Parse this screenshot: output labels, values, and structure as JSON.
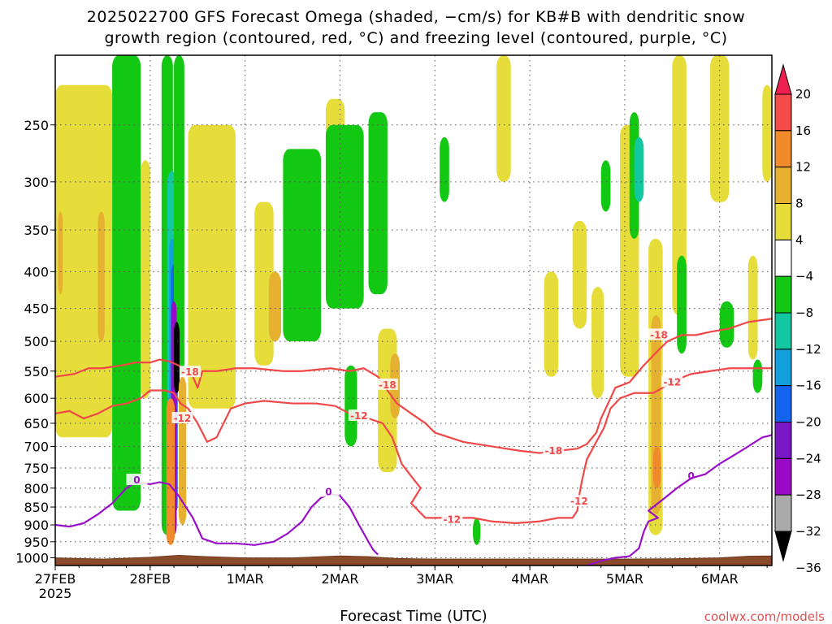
{
  "title": {
    "line1": "2025022700 GFS Forecast Omega (shaded, −cm/s) for KB#B with dendritic snow",
    "line2": "growth region (contoured, red, °C) and freezing level (contoured, purple, °C)"
  },
  "credit": "coolwx.com/models",
  "colors": {
    "background": "#ffffff",
    "dendritic_contour": "#f04848",
    "freezing_contour": "#9a10c8",
    "terrain": "#8b4a2b",
    "grid": "#555555"
  },
  "chart_data": {
    "type": "heatmap",
    "xlabel": "Forecast Time (UTC)",
    "ylabel": "",
    "x_unit": "days from 2025-02-27 00 UTC",
    "xlim": [
      0,
      7.55
    ],
    "ylim": [
      1025,
      200
    ],
    "y_scale": "log-pressure",
    "x_ticks": [
      {
        "value": 0,
        "label": "27FEB",
        "sublabel": "2025"
      },
      {
        "value": 1,
        "label": "28FEB"
      },
      {
        "value": 2,
        "label": "1MAR"
      },
      {
        "value": 3,
        "label": "2MAR"
      },
      {
        "value": 4,
        "label": "3MAR"
      },
      {
        "value": 5,
        "label": "4MAR"
      },
      {
        "value": 6,
        "label": "5MAR"
      },
      {
        "value": 7,
        "label": "6MAR"
      }
    ],
    "y_ticks": [
      250,
      300,
      350,
      400,
      450,
      500,
      550,
      600,
      650,
      700,
      750,
      800,
      850,
      900,
      950,
      1000
    ],
    "grid": true,
    "colorbar": {
      "position": "right",
      "labels": [
        "20",
        "16",
        "12",
        "8",
        "4",
        "−4",
        "−8",
        "−12",
        "−16",
        "−20",
        "−24",
        "−28",
        "−32",
        "−36"
      ],
      "colors": [
        "#ee2050",
        "#f44a4a",
        "#f08a2a",
        "#e6b030",
        "#e6dc3a",
        "#ffffff",
        "#12c812",
        "#12c8a0",
        "#12a0dc",
        "#1464f0",
        "#7a18c8",
        "#9a08c8",
        "#aaaaaa",
        "#000000"
      ]
    },
    "omega_regions": [
      {
        "t0": 0.0,
        "t1": 0.6,
        "p_top": 220,
        "p_bot": 680,
        "color": "#e6dc3a"
      },
      {
        "t0": 0.03,
        "t1": 0.08,
        "p_top": 330,
        "p_bot": 430,
        "color": "#e6b030"
      },
      {
        "t0": 0.45,
        "t1": 0.52,
        "p_top": 330,
        "p_bot": 500,
        "color": "#e6b030"
      },
      {
        "t0": 0.6,
        "t1": 0.9,
        "p_top": 200,
        "p_bot": 860,
        "color": "#12c812"
      },
      {
        "t0": 0.9,
        "t1": 1.0,
        "p_top": 280,
        "p_bot": 600,
        "color": "#e6dc3a"
      },
      {
        "t0": 1.12,
        "t1": 1.24,
        "p_top": 200,
        "p_bot": 930,
        "color": "#12c812"
      },
      {
        "t0": 1.18,
        "t1": 1.28,
        "p_top": 290,
        "p_bot": 800,
        "color": "#12c8a0"
      },
      {
        "t0": 1.2,
        "t1": 1.27,
        "p_top": 360,
        "p_bot": 720,
        "color": "#12a0dc"
      },
      {
        "t0": 1.22,
        "t1": 1.29,
        "p_top": 390,
        "p_bot": 870,
        "color": "#1464f0"
      },
      {
        "t0": 1.25,
        "t1": 1.36,
        "p_top": 200,
        "p_bot": 560,
        "color": "#12c812"
      },
      {
        "t0": 1.22,
        "t1": 1.28,
        "p_top": 440,
        "p_bot": 930,
        "color": "#9a08c8"
      },
      {
        "t0": 1.25,
        "t1": 1.31,
        "p_top": 470,
        "p_bot": 590,
        "color": "#000000"
      },
      {
        "t0": 1.17,
        "t1": 1.26,
        "p_top": 600,
        "p_bot": 960,
        "color": "#f08a2a"
      },
      {
        "t0": 1.3,
        "t1": 1.38,
        "p_top": 560,
        "p_bot": 900,
        "color": "#e6b030"
      },
      {
        "t0": 1.4,
        "t1": 1.9,
        "p_top": 250,
        "p_bot": 620,
        "color": "#e6dc3a"
      },
      {
        "t0": 2.1,
        "t1": 2.3,
        "p_top": 320,
        "p_bot": 540,
        "color": "#e6dc3a"
      },
      {
        "t0": 2.25,
        "t1": 2.38,
        "p_top": 400,
        "p_bot": 500,
        "color": "#e6b030"
      },
      {
        "t0": 2.4,
        "t1": 2.8,
        "p_top": 270,
        "p_bot": 500,
        "color": "#12c812"
      },
      {
        "t0": 2.85,
        "t1": 3.05,
        "p_top": 230,
        "p_bot": 430,
        "color": "#e6dc3a"
      },
      {
        "t0": 2.85,
        "t1": 3.25,
        "p_top": 250,
        "p_bot": 450,
        "color": "#12c812"
      },
      {
        "t0": 3.05,
        "t1": 3.18,
        "p_top": 540,
        "p_bot": 700,
        "color": "#12c812"
      },
      {
        "t0": 3.3,
        "t1": 3.5,
        "p_top": 240,
        "p_bot": 430,
        "color": "#12c812"
      },
      {
        "t0": 3.4,
        "t1": 3.6,
        "p_top": 480,
        "p_bot": 760,
        "color": "#e6dc3a"
      },
      {
        "t0": 3.53,
        "t1": 3.63,
        "p_top": 520,
        "p_bot": 640,
        "color": "#e6b030"
      },
      {
        "t0": 4.05,
        "t1": 4.15,
        "p_top": 260,
        "p_bot": 320,
        "color": "#12c812"
      },
      {
        "t0": 4.4,
        "t1": 4.48,
        "p_top": 880,
        "p_bot": 960,
        "color": "#12c812"
      },
      {
        "t0": 4.65,
        "t1": 4.8,
        "p_top": 200,
        "p_bot": 300,
        "color": "#e6dc3a"
      },
      {
        "t0": 5.15,
        "t1": 5.3,
        "p_top": 400,
        "p_bot": 560,
        "color": "#e6dc3a"
      },
      {
        "t0": 5.45,
        "t1": 5.6,
        "p_top": 340,
        "p_bot": 480,
        "color": "#e6dc3a"
      },
      {
        "t0": 5.65,
        "t1": 5.78,
        "p_top": 420,
        "p_bot": 600,
        "color": "#e6dc3a"
      },
      {
        "t0": 5.75,
        "t1": 5.85,
        "p_top": 280,
        "p_bot": 330,
        "color": "#12c812"
      },
      {
        "t0": 5.95,
        "t1": 6.15,
        "p_top": 250,
        "p_bot": 560,
        "color": "#e6dc3a"
      },
      {
        "t0": 6.05,
        "t1": 6.15,
        "p_top": 240,
        "p_bot": 360,
        "color": "#12c812"
      },
      {
        "t0": 6.1,
        "t1": 6.2,
        "p_top": 260,
        "p_bot": 320,
        "color": "#12c8a0"
      },
      {
        "t0": 6.25,
        "t1": 6.4,
        "p_top": 360,
        "p_bot": 930,
        "color": "#e6dc3a"
      },
      {
        "t0": 6.28,
        "t1": 6.38,
        "p_top": 460,
        "p_bot": 870,
        "color": "#e6b030"
      },
      {
        "t0": 6.3,
        "t1": 6.38,
        "p_top": 700,
        "p_bot": 800,
        "color": "#f08a2a"
      },
      {
        "t0": 6.5,
        "t1": 6.65,
        "p_top": 200,
        "p_bot": 460,
        "color": "#e6dc3a"
      },
      {
        "t0": 6.55,
        "t1": 6.65,
        "p_top": 380,
        "p_bot": 520,
        "color": "#12c812"
      },
      {
        "t0": 6.9,
        "t1": 7.1,
        "p_top": 200,
        "p_bot": 320,
        "color": "#e6dc3a"
      },
      {
        "t0": 7.0,
        "t1": 7.15,
        "p_top": 440,
        "p_bot": 510,
        "color": "#12c812"
      },
      {
        "t0": 7.3,
        "t1": 7.4,
        "p_top": 380,
        "p_bot": 530,
        "color": "#e6dc3a"
      },
      {
        "t0": 7.35,
        "t1": 7.45,
        "p_top": 530,
        "p_bot": 590,
        "color": "#12c812"
      },
      {
        "t0": 7.45,
        "t1": 7.55,
        "p_top": 220,
        "p_bot": 300,
        "color": "#e6dc3a"
      }
    ],
    "contours": [
      {
        "name": "-18",
        "color_key": "dendritic_contour",
        "labels": [
          {
            "t": 1.42,
            "p": 552,
            "text": "-18"
          },
          {
            "t": 3.5,
            "p": 575,
            "text": "-18"
          },
          {
            "t": 5.25,
            "p": 710,
            "text": "-18"
          },
          {
            "t": 6.36,
            "p": 490,
            "text": "-18"
          }
        ],
        "points": [
          [
            0,
            560
          ],
          [
            0.2,
            555
          ],
          [
            0.35,
            545
          ],
          [
            0.5,
            545
          ],
          [
            0.7,
            540
          ],
          [
            0.85,
            535
          ],
          [
            1.0,
            535
          ],
          [
            1.1,
            530
          ],
          [
            1.2,
            533
          ],
          [
            1.3,
            540
          ],
          [
            1.38,
            550
          ],
          [
            1.45,
            560
          ],
          [
            1.5,
            580
          ],
          [
            1.55,
            550
          ],
          [
            1.7,
            550
          ],
          [
            1.9,
            545
          ],
          [
            2.1,
            545
          ],
          [
            2.4,
            550
          ],
          [
            2.6,
            550
          ],
          [
            2.9,
            545
          ],
          [
            3.1,
            550
          ],
          [
            3.25,
            545
          ],
          [
            3.4,
            560
          ],
          [
            3.5,
            585
          ],
          [
            3.6,
            610
          ],
          [
            3.75,
            630
          ],
          [
            3.9,
            650
          ],
          [
            4.0,
            670
          ],
          [
            4.3,
            690
          ],
          [
            4.6,
            700
          ],
          [
            4.9,
            710
          ],
          [
            5.1,
            715
          ],
          [
            5.3,
            710
          ],
          [
            5.5,
            705
          ],
          [
            5.6,
            695
          ],
          [
            5.7,
            670
          ],
          [
            5.75,
            640
          ],
          [
            5.85,
            600
          ],
          [
            5.9,
            580
          ],
          [
            6.05,
            570
          ],
          [
            6.2,
            540
          ],
          [
            6.35,
            515
          ],
          [
            6.45,
            500
          ],
          [
            6.6,
            490
          ],
          [
            6.75,
            490
          ],
          [
            6.9,
            485
          ],
          [
            7.1,
            480
          ],
          [
            7.3,
            470
          ],
          [
            7.55,
            465
          ]
        ]
      },
      {
        "name": "-12",
        "color_key": "dendritic_contour",
        "labels": [
          {
            "t": 1.34,
            "p": 640,
            "text": "-12"
          },
          {
            "t": 3.2,
            "p": 635,
            "text": "-12"
          },
          {
            "t": 4.18,
            "p": 885,
            "text": "-12"
          },
          {
            "t": 5.52,
            "p": 835,
            "text": "-12"
          },
          {
            "t": 6.5,
            "p": 570,
            "text": "-12"
          }
        ],
        "points": [
          [
            0,
            630
          ],
          [
            0.15,
            625
          ],
          [
            0.3,
            640
          ],
          [
            0.45,
            630
          ],
          [
            0.6,
            615
          ],
          [
            0.75,
            610
          ],
          [
            0.9,
            600
          ],
          [
            1.0,
            585
          ],
          [
            1.15,
            585
          ],
          [
            1.25,
            590
          ],
          [
            1.32,
            610
          ],
          [
            1.4,
            620
          ],
          [
            1.5,
            650
          ],
          [
            1.6,
            690
          ],
          [
            1.7,
            680
          ],
          [
            1.85,
            620
          ],
          [
            2.0,
            610
          ],
          [
            2.2,
            605
          ],
          [
            2.5,
            610
          ],
          [
            2.75,
            610
          ],
          [
            2.95,
            615
          ],
          [
            3.1,
            630
          ],
          [
            3.3,
            640
          ],
          [
            3.45,
            650
          ],
          [
            3.55,
            680
          ],
          [
            3.65,
            740
          ],
          [
            3.75,
            770
          ],
          [
            3.85,
            800
          ],
          [
            3.75,
            840
          ],
          [
            3.9,
            880
          ],
          [
            4.1,
            880
          ],
          [
            4.4,
            880
          ],
          [
            4.6,
            890
          ],
          [
            4.85,
            895
          ],
          [
            5.1,
            890
          ],
          [
            5.3,
            880
          ],
          [
            5.45,
            880
          ],
          [
            5.5,
            860
          ],
          [
            5.52,
            820
          ],
          [
            5.55,
            780
          ],
          [
            5.6,
            730
          ],
          [
            5.7,
            690
          ],
          [
            5.78,
            660
          ],
          [
            5.85,
            620
          ],
          [
            5.95,
            600
          ],
          [
            6.1,
            590
          ],
          [
            6.3,
            590
          ],
          [
            6.45,
            575
          ],
          [
            6.55,
            565
          ],
          [
            6.7,
            555
          ],
          [
            6.9,
            550
          ],
          [
            7.1,
            545
          ],
          [
            7.3,
            545
          ],
          [
            7.55,
            545
          ]
        ]
      },
      {
        "name": "0",
        "color_key": "freezing_contour",
        "labels": [
          {
            "t": 0.86,
            "p": 780,
            "text": "0"
          },
          {
            "t": 2.88,
            "p": 810,
            "text": "0"
          },
          {
            "t": 6.7,
            "p": 770,
            "text": "0"
          }
        ],
        "points": [
          [
            0,
            900
          ],
          [
            0.15,
            905
          ],
          [
            0.3,
            895
          ],
          [
            0.45,
            870
          ],
          [
            0.6,
            840
          ],
          [
            0.75,
            800
          ],
          [
            0.85,
            785
          ],
          [
            1.0,
            790
          ],
          [
            1.1,
            785
          ],
          [
            1.2,
            790
          ],
          [
            1.3,
            820
          ],
          [
            1.45,
            880
          ],
          [
            1.55,
            940
          ],
          [
            1.7,
            955
          ],
          [
            1.9,
            955
          ],
          [
            2.1,
            960
          ],
          [
            2.3,
            950
          ],
          [
            2.45,
            925
          ],
          [
            2.6,
            890
          ],
          [
            2.7,
            850
          ],
          [
            2.8,
            825
          ],
          [
            2.9,
            815
          ],
          [
            3.0,
            820
          ],
          [
            3.1,
            850
          ],
          [
            3.2,
            900
          ],
          [
            3.3,
            950
          ],
          [
            3.35,
            975
          ],
          [
            3.4,
            990
          ]
        ]
      },
      {
        "name": "0b",
        "color_key": "freezing_contour",
        "labels": [],
        "points": [
          [
            5.6,
            1025
          ],
          [
            5.75,
            1010
          ],
          [
            5.9,
            1000
          ],
          [
            6.05,
            995
          ],
          [
            6.15,
            970
          ],
          [
            6.2,
            920
          ],
          [
            6.25,
            890
          ],
          [
            6.35,
            880
          ],
          [
            6.25,
            860
          ],
          [
            6.4,
            830
          ],
          [
            6.55,
            800
          ],
          [
            6.7,
            775
          ],
          [
            6.85,
            765
          ],
          [
            7.0,
            740
          ],
          [
            7.15,
            720
          ],
          [
            7.3,
            700
          ],
          [
            7.45,
            680
          ],
          [
            7.55,
            675
          ]
        ]
      }
    ],
    "terrain": [
      [
        0,
        1000
      ],
      [
        0.5,
        1004
      ],
      [
        1.0,
        998
      ],
      [
        1.3,
        992
      ],
      [
        1.6,
        996
      ],
      [
        2.0,
        1000
      ],
      [
        2.5,
        1000
      ],
      [
        3.0,
        994
      ],
      [
        3.3,
        996
      ],
      [
        3.6,
        1002
      ],
      [
        4.0,
        1004
      ],
      [
        4.5,
        1004
      ],
      [
        5.0,
        1004
      ],
      [
        5.5,
        1004
      ],
      [
        6.0,
        1004
      ],
      [
        6.5,
        1003
      ],
      [
        7.0,
        1000
      ],
      [
        7.3,
        995
      ],
      [
        7.55,
        994
      ]
    ]
  }
}
